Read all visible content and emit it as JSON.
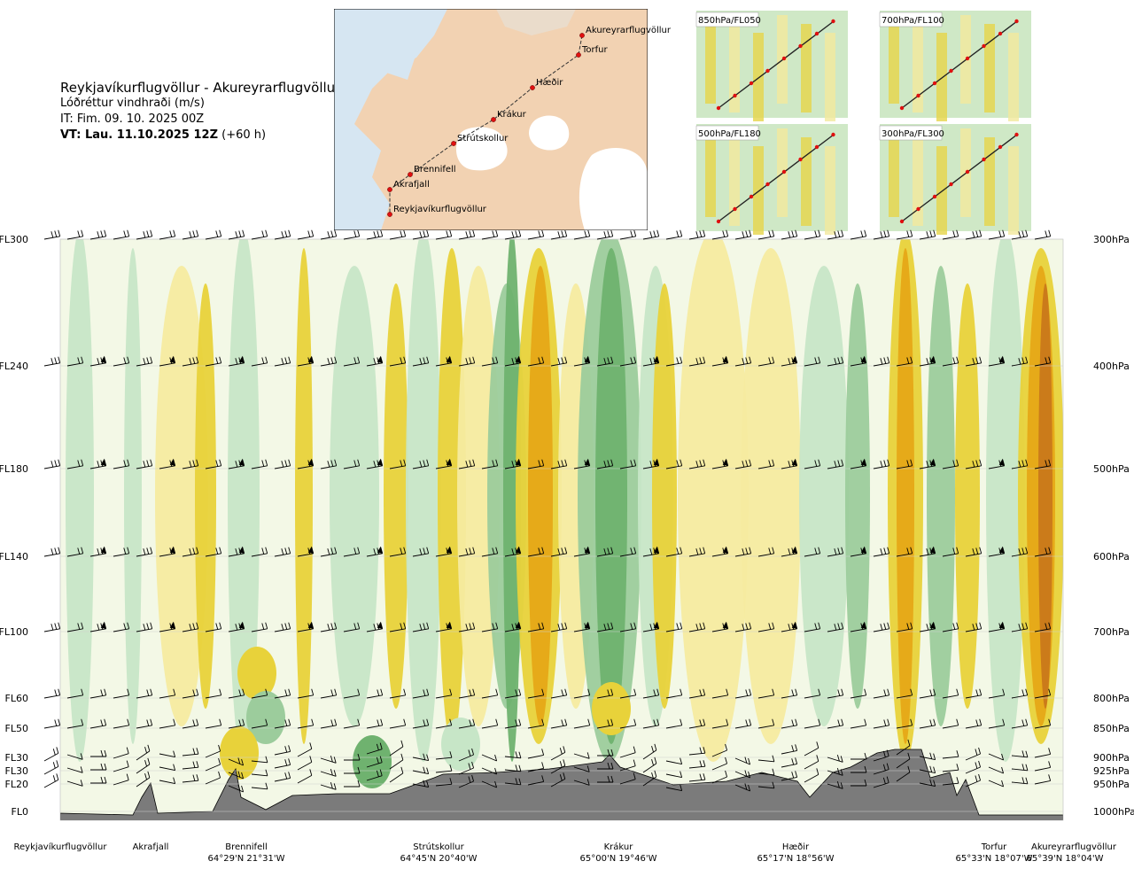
{
  "header": {
    "route": "Reykjavíkurflugvöllur - Akureyrarflugvöllur",
    "subtitle": "Lóðréttur vindhraði (m/s)",
    "issue_time": "IT: Fim. 09. 10. 2025 00Z",
    "valid_label": "VT: Lau. 11.10.2025 12Z",
    "valid_suffix": " (+60 h)"
  },
  "map": {
    "waypoints": [
      "Akureyrarflugvöllur",
      "Torfur",
      "Hæðir",
      "Krákur",
      "Strútskollur",
      "Brennifell",
      "Akrafjall",
      "Reykjavíkurflugvöllur"
    ]
  },
  "insets": [
    "850hPa/FL050",
    "700hPa/FL100",
    "500hPa/FL180",
    "300hPa/FL300"
  ],
  "chart_data": {
    "type": "heatmap",
    "title": "Lóðréttur vindhraði (m/s)",
    "flight_levels": [
      {
        "label": "FL300",
        "pressure": "300hPa"
      },
      {
        "label": "FL240",
        "pressure": "400hPa"
      },
      {
        "label": "FL180",
        "pressure": "500hPa"
      },
      {
        "label": "FL140",
        "pressure": "600hPa"
      },
      {
        "label": "FL100",
        "pressure": "700hPa"
      },
      {
        "label": "FL60",
        "pressure": "800hPa"
      },
      {
        "label": "FL50",
        "pressure": "850hPa"
      },
      {
        "label": "FL30",
        "pressure": "900hPa"
      },
      {
        "label": "FL30",
        "pressure": "925hPa"
      },
      {
        "label": "FL20",
        "pressure": "950hPa"
      },
      {
        "label": "FL0",
        "pressure": "1000hPa"
      }
    ],
    "waypoints": [
      {
        "name": "Reykjavíkurflugvöllur",
        "coords": ""
      },
      {
        "name": "Akrafjall",
        "coords": ""
      },
      {
        "name": "Brennifell",
        "coords": "64°29'N 21°31'W"
      },
      {
        "name": "Strútskollur",
        "coords": "64°45'N 20°40'W"
      },
      {
        "name": "Krákur",
        "coords": "65°00'N 19°46'W"
      },
      {
        "name": "Hæðir",
        "coords": "65°17'N 18°56'W"
      },
      {
        "name": "Torfur",
        "coords": "65°33'N 18°07'W"
      },
      {
        "name": "Akureyrarflugvöllur",
        "coords": "65°39'N 18°04'W"
      }
    ],
    "colors": {
      "strong_down": "#6fb26f",
      "down": "#9ccc9c",
      "weak_down": "#c7e6c7",
      "neutral": "#f3f8e6",
      "weak_up": "#f5eba0",
      "up": "#e8d23a",
      "strong_up": "#e6a817",
      "very_strong_up": "#c9781a",
      "terrain": "#7b7b7b"
    }
  }
}
